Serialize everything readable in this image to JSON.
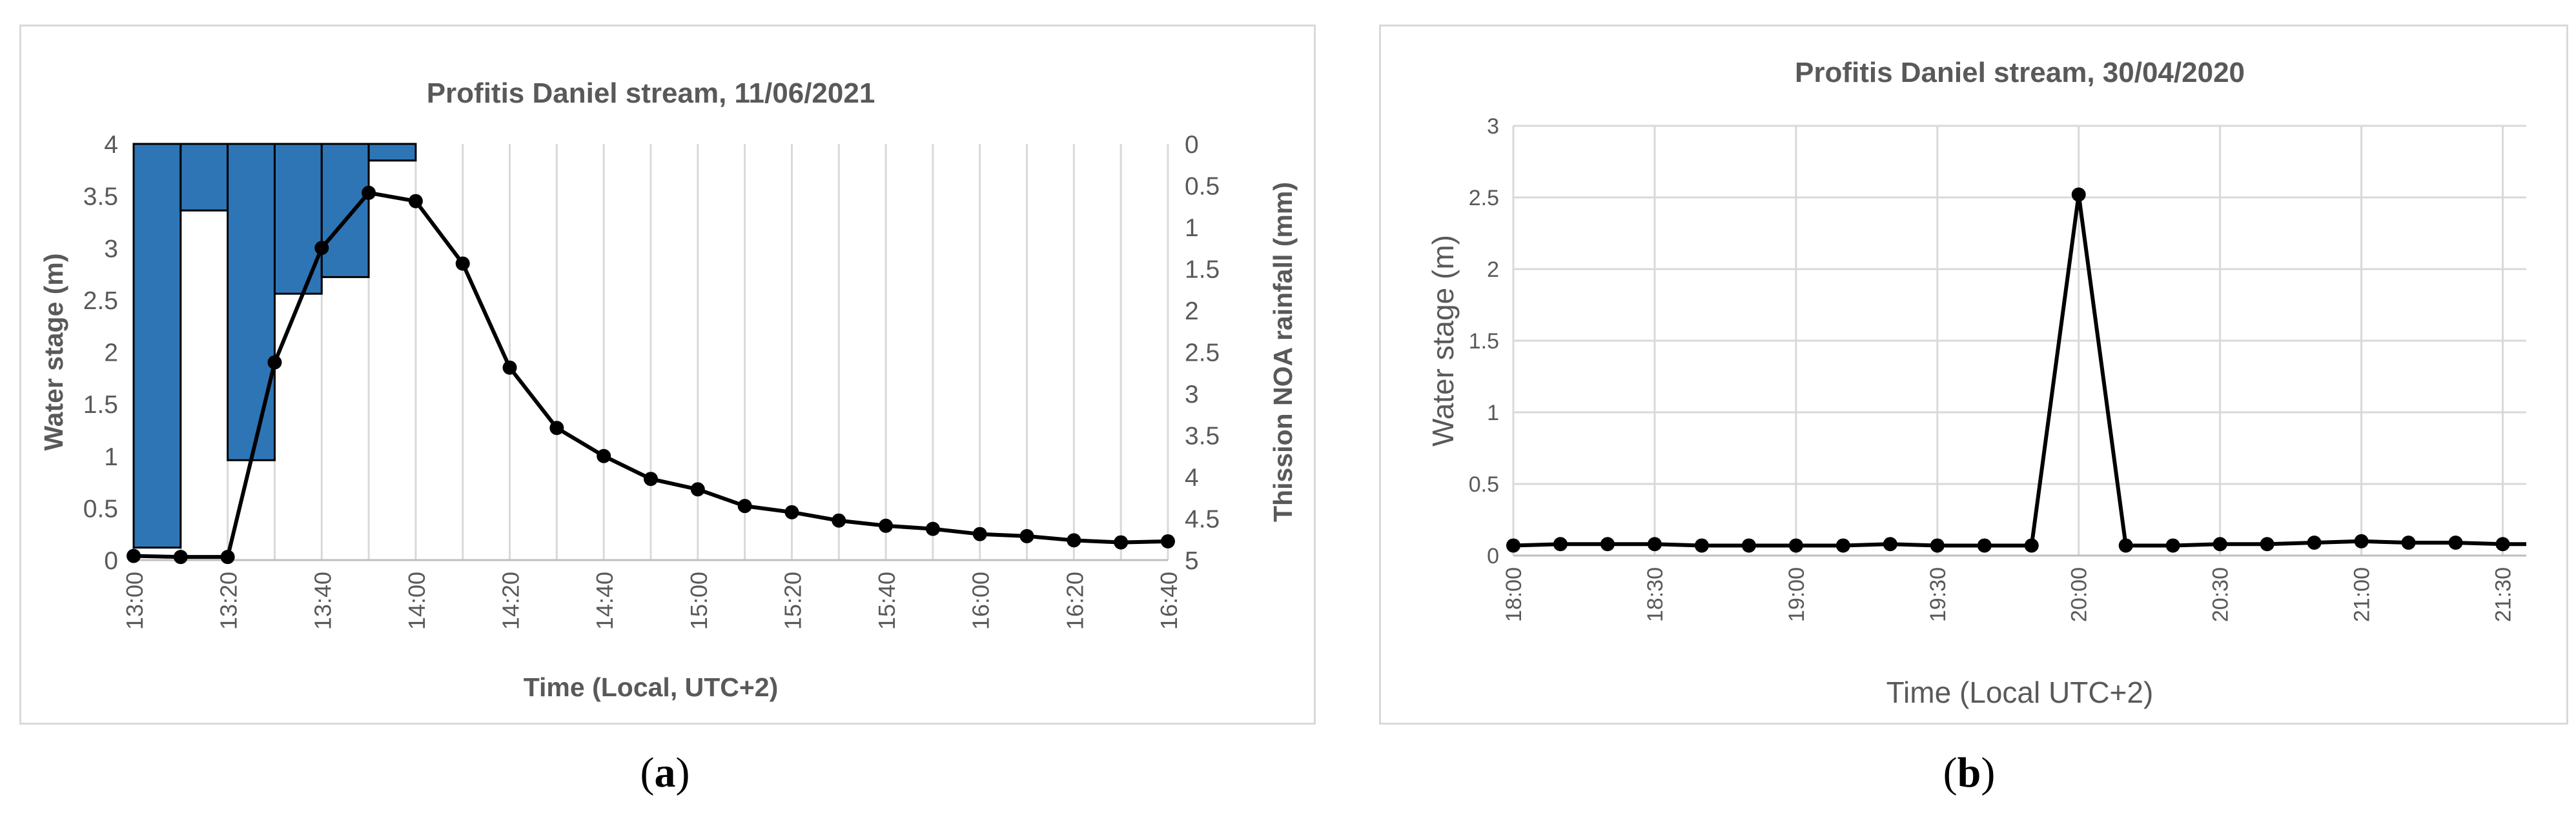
{
  "chart_data": [
    {
      "panel": "a",
      "type": "line",
      "title": "Profitis Daniel stream, 11/06/2021",
      "xlabel": "Time (Local, UTC+2)",
      "ylabel": "Water stage (m)",
      "y2label": "Thission NOA rainfall (mm)",
      "ylim": [
        0,
        4
      ],
      "y2lim": [
        0,
        5
      ],
      "y2_inverted": true,
      "yticks": [
        "0",
        "0.5",
        "1",
        "1.5",
        "2",
        "2.5",
        "3",
        "3.5",
        "4"
      ],
      "y2ticks": [
        "0",
        "0.5",
        "1",
        "1.5",
        "2",
        "2.5",
        "3",
        "3.5",
        "4",
        "4.5",
        "5"
      ],
      "xticks": [
        "13:00",
        "13:20",
        "13:40",
        "14:00",
        "14:20",
        "14:40",
        "15:00",
        "15:20",
        "15:40",
        "16:00",
        "16:20",
        "16:40"
      ],
      "grid": "vertical",
      "series": [
        {
          "kind": "line",
          "x": [
            "13:00",
            "13:10",
            "13:20",
            "13:30",
            "13:40",
            "13:50",
            "14:00",
            "14:10",
            "14:20",
            "14:30",
            "14:40",
            "14:50",
            "15:00",
            "15:10",
            "15:20",
            "15:30",
            "15:40",
            "15:50",
            "16:00",
            "16:10",
            "16:20",
            "16:30",
            "16:40"
          ],
          "values": [
            0.04,
            0.03,
            0.03,
            1.9,
            3.0,
            3.53,
            3.45,
            2.85,
            1.85,
            1.27,
            1.0,
            0.78,
            0.68,
            0.52,
            0.46,
            0.38,
            0.33,
            0.3,
            0.25,
            0.23,
            0.19,
            0.17,
            0.18
          ],
          "color": "#000000"
        },
        {
          "kind": "bar",
          "axis": "y2",
          "x": [
            "13:10",
            "13:20",
            "13:30",
            "13:40",
            "13:50",
            "14:00"
          ],
          "values": [
            4.85,
            0.8,
            3.8,
            1.8,
            1.6,
            0.2
          ],
          "color": "#2e75b6"
        }
      ]
    },
    {
      "panel": "b",
      "type": "line",
      "title": "Profitis Daniel stream, 30/04/2020",
      "xlabel": "Time (Local UTC+2)",
      "ylabel": "Water stage (m)",
      "ylim": [
        0,
        3
      ],
      "yticks": [
        "0",
        "0.5",
        "1",
        "1.5",
        "2",
        "2.5",
        "3"
      ],
      "xticks": [
        "18:00",
        "18:30",
        "19:00",
        "19:30",
        "20:00",
        "20:30",
        "21:00",
        "21:30"
      ],
      "grid": "both",
      "series": [
        {
          "kind": "line",
          "x": [
            "18:00",
            "18:10",
            "18:20",
            "18:30",
            "18:40",
            "18:50",
            "19:00",
            "19:10",
            "19:20",
            "19:30",
            "19:40",
            "19:50",
            "20:00",
            "20:10",
            "20:20",
            "20:30",
            "20:40",
            "20:50",
            "21:00",
            "21:10",
            "21:20",
            "21:30"
          ],
          "values": [
            0.07,
            0.08,
            0.08,
            0.08,
            0.07,
            0.07,
            0.07,
            0.07,
            0.08,
            0.07,
            0.07,
            0.07,
            2.52,
            0.07,
            0.07,
            0.08,
            0.08,
            0.09,
            0.1,
            0.09,
            0.09,
            0.08
          ],
          "color": "#000000"
        }
      ]
    }
  ],
  "captions": {
    "a": "a",
    "b": "b"
  }
}
